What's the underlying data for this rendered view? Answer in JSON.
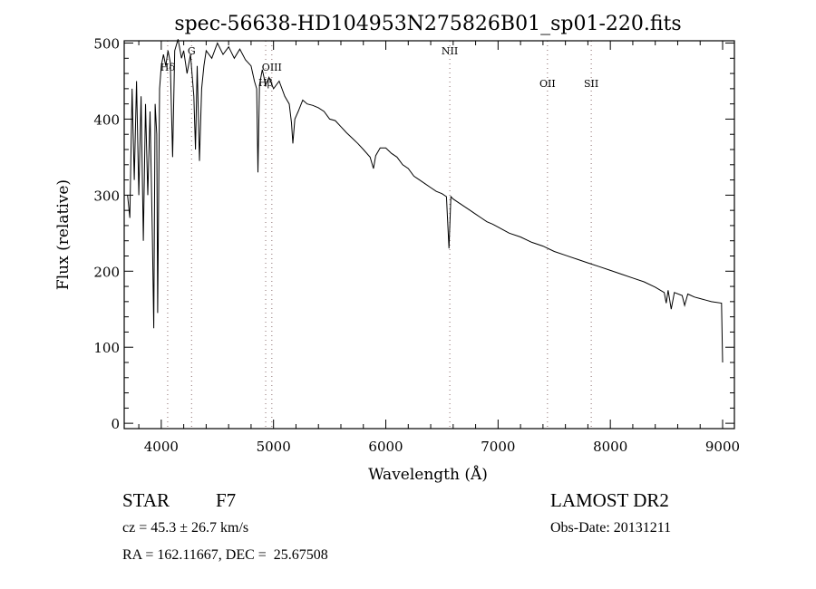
{
  "chart_data": {
    "type": "line",
    "title": "spec-56638-HD104953N275826B01_sp01-220.fits",
    "xlabel": "Wavelength (Å)",
    "ylabel": "Flux (relative)",
    "xlim": [
      3670,
      9105
    ],
    "ylim": [
      -7,
      503
    ],
    "xticks": [
      "4000",
      "5000",
      "6000",
      "7000",
      "8000",
      "9000"
    ],
    "xtick_values": [
      4000,
      5000,
      6000,
      7000,
      8000,
      9000
    ],
    "yticks": [
      "0",
      "100",
      "200",
      "300",
      "400",
      "500"
    ],
    "ytick_values": [
      0,
      100,
      200,
      300,
      400,
      500
    ],
    "grid": false,
    "series": [
      {
        "name": "spectrum",
        "points": [
          [
            3700,
            300
          ],
          [
            3720,
            270
          ],
          [
            3740,
            440
          ],
          [
            3760,
            320
          ],
          [
            3780,
            450
          ],
          [
            3800,
            300
          ],
          [
            3820,
            430
          ],
          [
            3840,
            240
          ],
          [
            3860,
            420
          ],
          [
            3880,
            300
          ],
          [
            3900,
            410
          ],
          [
            3920,
            250
          ],
          [
            3933,
            125
          ],
          [
            3945,
            420
          ],
          [
            3960,
            380
          ],
          [
            3968,
            145
          ],
          [
            3985,
            440
          ],
          [
            4000,
            470
          ],
          [
            4020,
            485
          ],
          [
            4040,
            470
          ],
          [
            4060,
            490
          ],
          [
            4080,
            475
          ],
          [
            4101,
            350
          ],
          [
            4120,
            490
          ],
          [
            4150,
            505
          ],
          [
            4180,
            480
          ],
          [
            4200,
            490
          ],
          [
            4230,
            460
          ],
          [
            4260,
            485
          ],
          [
            4290,
            430
          ],
          [
            4305,
            360
          ],
          [
            4320,
            470
          ],
          [
            4340,
            345
          ],
          [
            4360,
            440
          ],
          [
            4380,
            470
          ],
          [
            4400,
            490
          ],
          [
            4450,
            480
          ],
          [
            4500,
            500
          ],
          [
            4550,
            485
          ],
          [
            4600,
            495
          ],
          [
            4650,
            480
          ],
          [
            4700,
            492
          ],
          [
            4750,
            478
          ],
          [
            4800,
            470
          ],
          [
            4830,
            450
          ],
          [
            4850,
            440
          ],
          [
            4861,
            330
          ],
          [
            4875,
            445
          ],
          [
            4900,
            465
          ],
          [
            4930,
            445
          ],
          [
            4960,
            455
          ],
          [
            5000,
            440
          ],
          [
            5050,
            450
          ],
          [
            5100,
            430
          ],
          [
            5140,
            420
          ],
          [
            5160,
            395
          ],
          [
            5172,
            368
          ],
          [
            5190,
            400
          ],
          [
            5220,
            410
          ],
          [
            5260,
            425
          ],
          [
            5300,
            420
          ],
          [
            5350,
            418
          ],
          [
            5400,
            415
          ],
          [
            5450,
            410
          ],
          [
            5500,
            400
          ],
          [
            5550,
            398
          ],
          [
            5600,
            390
          ],
          [
            5650,
            382
          ],
          [
            5700,
            375
          ],
          [
            5750,
            368
          ],
          [
            5800,
            360
          ],
          [
            5860,
            350
          ],
          [
            5890,
            335
          ],
          [
            5910,
            352
          ],
          [
            5950,
            362
          ],
          [
            6000,
            362
          ],
          [
            6050,
            355
          ],
          [
            6100,
            350
          ],
          [
            6150,
            340
          ],
          [
            6200,
            335
          ],
          [
            6250,
            325
          ],
          [
            6300,
            320
          ],
          [
            6350,
            315
          ],
          [
            6400,
            310
          ],
          [
            6450,
            305
          ],
          [
            6500,
            302
          ],
          [
            6540,
            298
          ],
          [
            6563,
            230
          ],
          [
            6580,
            298
          ],
          [
            6600,
            295
          ],
          [
            6650,
            290
          ],
          [
            6700,
            285
          ],
          [
            6750,
            280
          ],
          [
            6800,
            275
          ],
          [
            6850,
            270
          ],
          [
            6900,
            265
          ],
          [
            6950,
            262
          ],
          [
            7000,
            258
          ],
          [
            7100,
            250
          ],
          [
            7200,
            245
          ],
          [
            7300,
            238
          ],
          [
            7400,
            233
          ],
          [
            7500,
            226
          ],
          [
            7600,
            221
          ],
          [
            7700,
            216
          ],
          [
            7800,
            211
          ],
          [
            7900,
            206
          ],
          [
            8000,
            201
          ],
          [
            8100,
            196
          ],
          [
            8200,
            191
          ],
          [
            8300,
            186
          ],
          [
            8400,
            179
          ],
          [
            8480,
            172
          ],
          [
            8498,
            158
          ],
          [
            8515,
            175
          ],
          [
            8542,
            150
          ],
          [
            8570,
            172
          ],
          [
            8640,
            168
          ],
          [
            8662,
            155
          ],
          [
            8690,
            170
          ],
          [
            8750,
            166
          ],
          [
            8800,
            164
          ],
          [
            8850,
            162
          ],
          [
            8900,
            160
          ],
          [
            8990,
            158
          ],
          [
            9000,
            80
          ]
        ]
      }
    ],
    "annotations": [
      {
        "label": "Hδ",
        "wavelength": 4057
      },
      {
        "label": "G",
        "wavelength": 4270
      },
      {
        "label": "Hβ",
        "wavelength": 4930
      },
      {
        "label": "OIII",
        "wavelength": 4985
      },
      {
        "label": "NII",
        "wavelength": 6570
      },
      {
        "label": "OII",
        "wavelength": 7440
      },
      {
        "label": "SII",
        "wavelength": 7830
      }
    ]
  },
  "info": {
    "class": "STAR",
    "subclass": "F7",
    "survey": "LAMOST DR2",
    "cz": "cz = 45.3 ± 26.7 km/s",
    "obs_date": "Obs-Date: 20131211",
    "coords": "RA = 162.11667, DEC =  25.67508"
  }
}
